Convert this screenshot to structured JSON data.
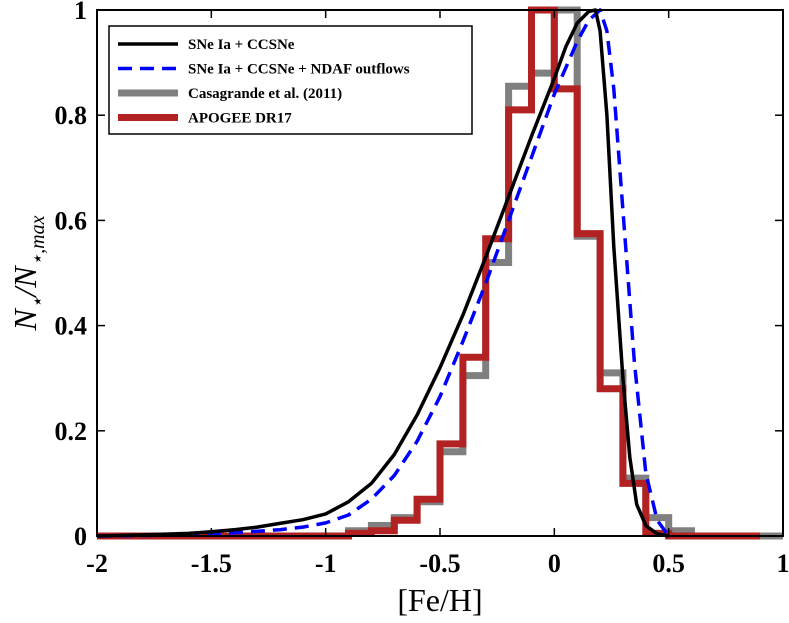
{
  "chart_data": {
    "type": "line",
    "title": "",
    "xlabel": "[Fe/H]",
    "ylabel": {
      "main": "N",
      "sub1": "⋆",
      "slash": "/N",
      "sub2": "⋆,max"
    },
    "xlim": [
      -2,
      1
    ],
    "ylim": [
      0,
      1
    ],
    "xticks": [
      -2,
      -1.5,
      -1,
      -0.5,
      0,
      0.5,
      1
    ],
    "xtick_labels": [
      "-2",
      "-1.5",
      "-1",
      "-0.5",
      "0",
      "0.5",
      "1"
    ],
    "yticks": [
      0,
      0.2,
      0.4,
      0.6,
      0.8,
      1
    ],
    "ytick_labels": [
      "0",
      "0.2",
      "0.4",
      "0.6",
      "0.8",
      "1"
    ],
    "legend_position": "top-left",
    "series": [
      {
        "name": "SNe Ia + CCSNe",
        "kind": "line",
        "color": "#000000",
        "dash": "solid",
        "x": [
          -2.0,
          -1.8,
          -1.6,
          -1.5,
          -1.4,
          -1.3,
          -1.2,
          -1.1,
          -1.0,
          -0.9,
          -0.8,
          -0.7,
          -0.6,
          -0.5,
          -0.4,
          -0.3,
          -0.2,
          -0.1,
          0.0,
          0.05,
          0.1,
          0.15,
          0.18,
          0.2,
          0.23,
          0.26,
          0.3,
          0.33,
          0.36,
          0.4,
          0.45,
          0.5
        ],
        "y": [
          0.0,
          0.002,
          0.005,
          0.008,
          0.012,
          0.017,
          0.024,
          0.031,
          0.042,
          0.065,
          0.1,
          0.155,
          0.23,
          0.32,
          0.42,
          0.53,
          0.645,
          0.76,
          0.87,
          0.93,
          0.975,
          0.997,
          1.0,
          0.96,
          0.8,
          0.55,
          0.3,
          0.15,
          0.06,
          0.02,
          0.004,
          0.0
        ]
      },
      {
        "name": "SNe Ia + CCSNe + NDAF outflows",
        "kind": "line",
        "color": "#0000ff",
        "dash": "dashed",
        "x": [
          -2.0,
          -1.8,
          -1.6,
          -1.4,
          -1.2,
          -1.1,
          -1.0,
          -0.9,
          -0.8,
          -0.7,
          -0.6,
          -0.5,
          -0.4,
          -0.3,
          -0.2,
          -0.1,
          0.0,
          0.1,
          0.15,
          0.2,
          0.23,
          0.26,
          0.3,
          0.35,
          0.4,
          0.45,
          0.5
        ],
        "y": [
          0.0,
          0.001,
          0.003,
          0.006,
          0.012,
          0.017,
          0.025,
          0.04,
          0.07,
          0.115,
          0.18,
          0.265,
          0.37,
          0.48,
          0.6,
          0.72,
          0.84,
          0.94,
          0.98,
          1.0,
          0.96,
          0.85,
          0.62,
          0.33,
          0.12,
          0.03,
          0.0
        ]
      },
      {
        "name": "Casagrande et al. (2011)",
        "kind": "step",
        "color": "#808080",
        "edges": [
          -2.0,
          -0.9,
          -0.8,
          -0.7,
          -0.6,
          -0.5,
          -0.4,
          -0.3,
          -0.2,
          -0.1,
          0.0,
          0.1,
          0.2,
          0.3,
          0.4,
          0.5,
          0.6,
          1.0
        ],
        "values": [
          0.0,
          0.01,
          0.02,
          0.035,
          0.065,
          0.16,
          0.305,
          0.52,
          0.855,
          0.88,
          1.0,
          0.57,
          0.31,
          0.11,
          0.035,
          0.01,
          0.0
        ]
      },
      {
        "name": "APOGEE DR17",
        "kind": "step",
        "color": "#b22222",
        "edges": [
          -2.0,
          -1.0,
          -0.9,
          -0.8,
          -0.7,
          -0.6,
          -0.5,
          -0.4,
          -0.3,
          -0.2,
          -0.1,
          0.0,
          0.1,
          0.2,
          0.3,
          0.4,
          0.5,
          0.9
        ],
        "values": [
          0.0,
          0.0,
          0.005,
          0.01,
          0.03,
          0.07,
          0.175,
          0.34,
          0.565,
          0.81,
          1.0,
          0.85,
          0.575,
          0.28,
          0.1,
          0.005,
          0.0
        ]
      }
    ]
  }
}
